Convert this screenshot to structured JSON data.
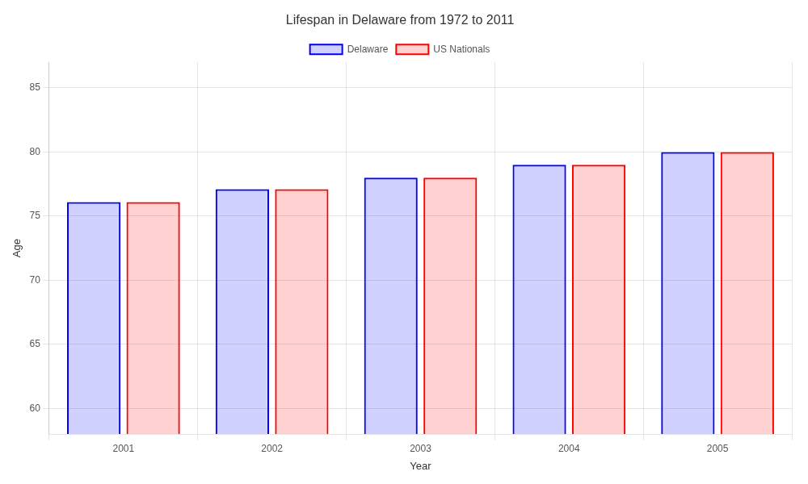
{
  "chart_data": {
    "type": "bar",
    "title": "Lifespan in Delaware from 1972 to 2011",
    "xlabel": "Year",
    "ylabel": "Age",
    "categories": [
      "2001",
      "2002",
      "2003",
      "2004",
      "2005"
    ],
    "series": [
      {
        "name": "Delaware",
        "color": "#0000ff",
        "values": [
          76.1,
          77.1,
          78.0,
          79.0,
          80.0
        ]
      },
      {
        "name": "US Nationals",
        "color": "#ff0000",
        "values": [
          76.1,
          77.1,
          78.0,
          79.0,
          80.0
        ]
      }
    ],
    "ylim": [
      58,
      87
    ],
    "yticks": [
      60,
      65,
      70,
      75,
      80,
      85
    ],
    "grid": true,
    "legend": "top"
  }
}
